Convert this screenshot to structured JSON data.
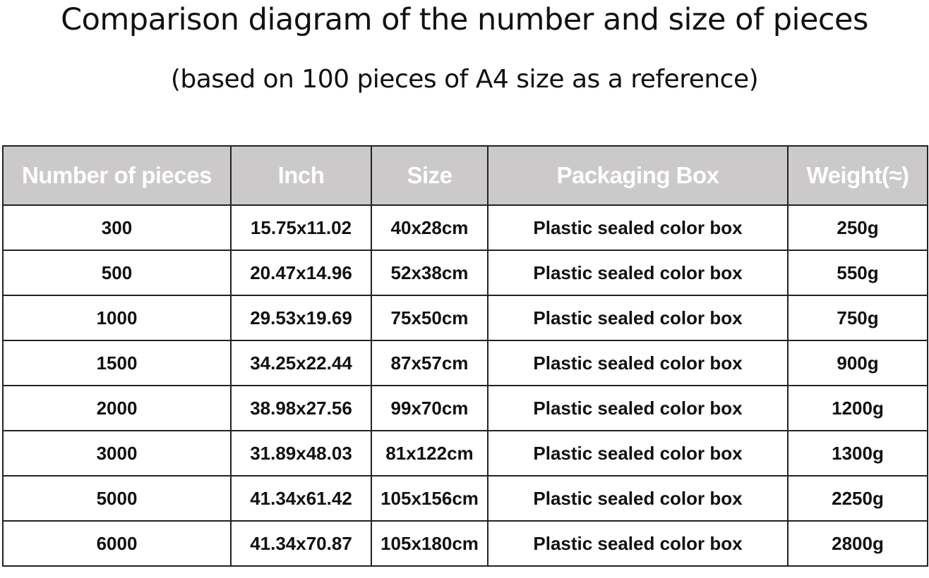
{
  "title": "Comparison diagram of the number and size of pieces",
  "subtitle": "(based on 100 pieces of A4 size as a reference)",
  "table": {
    "header_bg": "#cbc9ca",
    "headers": [
      "Number of pieces",
      "Inch",
      "Size",
      "Packaging Box",
      "Weight(≈)"
    ],
    "rows": [
      [
        "300",
        "15.75x11.02",
        "40x28cm",
        "Plastic sealed color box",
        "250g"
      ],
      [
        "500",
        "20.47x14.96",
        "52x38cm",
        "Plastic sealed color box",
        "550g"
      ],
      [
        "1000",
        "29.53x19.69",
        "75x50cm",
        "Plastic sealed color box",
        "750g"
      ],
      [
        "1500",
        "34.25x22.44",
        "87x57cm",
        "Plastic sealed color box",
        "900g"
      ],
      [
        "2000",
        "38.98x27.56",
        "99x70cm",
        "Plastic sealed color box",
        "1200g"
      ],
      [
        "3000",
        "31.89x48.03",
        "81x122cm",
        "Plastic sealed color box",
        "1300g"
      ],
      [
        "5000",
        "41.34x61.42",
        "105x156cm",
        "Plastic sealed color box",
        "2250g"
      ],
      [
        "6000",
        "41.34x70.87",
        "105x180cm",
        "Plastic sealed color box",
        "2800g"
      ]
    ]
  }
}
